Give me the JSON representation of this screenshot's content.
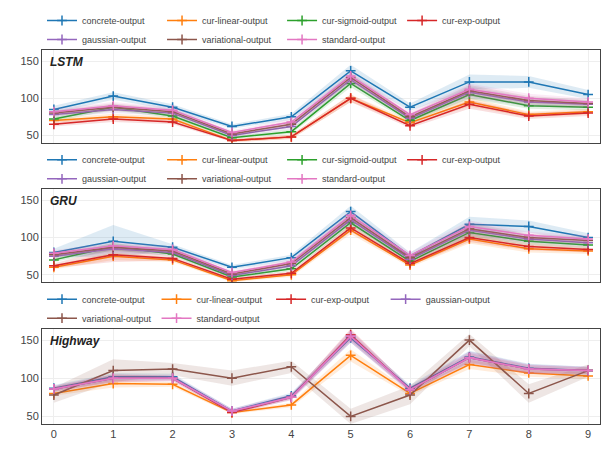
{
  "chart_data": [
    {
      "type": "line",
      "title": "LSTM",
      "legend": "above",
      "grid": true,
      "marker": "cross",
      "tick_labels": "y",
      "x": [
        0,
        1,
        2,
        3,
        4,
        5,
        6,
        7,
        8,
        9
      ],
      "xlim": [
        -0.2,
        9.2
      ],
      "xticks": [
        0,
        1,
        2,
        3,
        4,
        5,
        6,
        7,
        8,
        9
      ],
      "ylim": [
        40,
        165
      ],
      "yticks": [
        50,
        100,
        150
      ],
      "series": [
        {
          "name": "concrete-output",
          "color": "#1f77b4",
          "values": [
            85,
            103,
            88,
            62,
            75,
            137,
            88,
            122,
            122,
            105
          ],
          "std": [
            5,
            5,
            4,
            3,
            4,
            8,
            5,
            10,
            8,
            6
          ]
        },
        {
          "name": "cur-linear-output",
          "color": "#ff7f0e",
          "values": [
            70,
            75,
            72,
            43,
            48,
            100,
            67,
            95,
            78,
            82
          ],
          "std": [
            3,
            4,
            3,
            2,
            3,
            5,
            3,
            6,
            4,
            4
          ]
        },
        {
          "name": "cur-sigmoid-output",
          "color": "#2ca02c",
          "values": [
            72,
            88,
            76,
            47,
            55,
            120,
            70,
            105,
            90,
            88
          ],
          "std": [
            3,
            4,
            3,
            2,
            3,
            5,
            3,
            6,
            4,
            4
          ]
        },
        {
          "name": "cur-exp-output",
          "color": "#d62728",
          "values": [
            65,
            72,
            68,
            43,
            48,
            100,
            63,
            92,
            76,
            80
          ],
          "std": [
            3,
            4,
            3,
            2,
            3,
            5,
            3,
            6,
            4,
            4
          ]
        },
        {
          "name": "gaussian-output",
          "color": "#9467bd",
          "values": [
            78,
            85,
            80,
            50,
            62,
            125,
            73,
            108,
            95,
            92
          ],
          "std": [
            4,
            5,
            4,
            3,
            4,
            6,
            4,
            8,
            6,
            5
          ]
        },
        {
          "name": "variational-output",
          "color": "#8c564b",
          "values": [
            80,
            88,
            82,
            52,
            65,
            128,
            75,
            110,
            97,
            93
          ],
          "std": [
            4,
            5,
            4,
            3,
            4,
            6,
            4,
            8,
            6,
            5
          ]
        },
        {
          "name": "standard-output",
          "color": "#e377c2",
          "values": [
            82,
            90,
            84,
            54,
            68,
            130,
            78,
            112,
            100,
            95
          ],
          "std": [
            4,
            5,
            4,
            3,
            4,
            6,
            4,
            8,
            6,
            5
          ]
        }
      ]
    },
    {
      "type": "line",
      "title": "GRU",
      "legend": "above",
      "grid": true,
      "marker": "cross",
      "tick_labels": "y",
      "x": [
        0,
        1,
        2,
        3,
        4,
        5,
        6,
        7,
        8,
        9
      ],
      "xlim": [
        -0.2,
        9.2
      ],
      "xticks": [
        0,
        1,
        2,
        3,
        4,
        5,
        6,
        7,
        8,
        9
      ],
      "ylim": [
        40,
        165
      ],
      "yticks": [
        50,
        100,
        150
      ],
      "series": [
        {
          "name": "concrete-output",
          "color": "#1f77b4",
          "values": [
            80,
            95,
            87,
            60,
            73,
            135,
            75,
            118,
            115,
            100
          ],
          "std": [
            5,
            22,
            4,
            3,
            4,
            8,
            5,
            10,
            8,
            6
          ]
        },
        {
          "name": "cur-linear-output",
          "color": "#ff7f0e",
          "values": [
            60,
            75,
            70,
            42,
            50,
            110,
            63,
            98,
            85,
            82
          ],
          "std": [
            3,
            5,
            3,
            2,
            3,
            5,
            3,
            6,
            5,
            4
          ]
        },
        {
          "name": "cur-sigmoid-output",
          "color": "#2ca02c",
          "values": [
            70,
            88,
            78,
            47,
            58,
            120,
            68,
            107,
            95,
            90
          ],
          "std": [
            3,
            5,
            3,
            2,
            3,
            5,
            3,
            6,
            5,
            4
          ]
        },
        {
          "name": "cur-exp-output",
          "color": "#d62728",
          "values": [
            62,
            77,
            72,
            44,
            52,
            113,
            65,
            100,
            88,
            84
          ],
          "std": [
            3,
            10,
            3,
            2,
            3,
            5,
            3,
            6,
            5,
            4
          ]
        },
        {
          "name": "gaussian-output",
          "color": "#9467bd",
          "values": [
            75,
            85,
            80,
            49,
            62,
            124,
            71,
            110,
            98,
            93
          ],
          "std": [
            4,
            5,
            4,
            3,
            4,
            6,
            4,
            8,
            5,
            5
          ]
        },
        {
          "name": "variational-output",
          "color": "#8c564b",
          "values": [
            77,
            87,
            82,
            51,
            65,
            127,
            73,
            112,
            100,
            96
          ],
          "std": [
            4,
            5,
            4,
            3,
            4,
            6,
            4,
            8,
            5,
            5
          ]
        },
        {
          "name": "standard-output",
          "color": "#e377c2",
          "values": [
            79,
            89,
            84,
            53,
            67,
            130,
            76,
            115,
            103,
            98
          ],
          "std": [
            4,
            5,
            4,
            3,
            4,
            6,
            4,
            8,
            5,
            5
          ]
        }
      ]
    },
    {
      "type": "line",
      "title": "Highway",
      "legend": "above",
      "grid": true,
      "marker": "cross",
      "x": [
        0,
        1,
        2,
        3,
        4,
        5,
        6,
        7,
        8,
        9
      ],
      "xlim": [
        -0.2,
        9.2
      ],
      "xticks": [
        0,
        1,
        2,
        3,
        4,
        5,
        6,
        7,
        8,
        9
      ],
      "ylim": [
        40,
        165
      ],
      "yticks": [
        50,
        100,
        150
      ],
      "series": [
        {
          "name": "concrete-output",
          "color": "#1f77b4",
          "values": [
            87,
            102,
            102,
            57,
            77,
            153,
            87,
            128,
            113,
            110
          ],
          "std": [
            4,
            5,
            4,
            3,
            4,
            6,
            4,
            8,
            6,
            5
          ]
        },
        {
          "name": "cur-linear-output",
          "color": "#ff7f0e",
          "values": [
            80,
            93,
            92,
            55,
            65,
            130,
            80,
            118,
            107,
            103
          ],
          "std": [
            3,
            5,
            3,
            2,
            3,
            8,
            3,
            6,
            5,
            4
          ]
        },
        {
          "name": "cur-exp-output",
          "color": "#d62728",
          "values": [
            86,
            100,
            100,
            55,
            75,
            157,
            85,
            127,
            112,
            110
          ],
          "std": [
            3,
            5,
            3,
            2,
            3,
            8,
            3,
            6,
            5,
            4
          ]
        },
        {
          "name": "gaussian-output",
          "color": "#9467bd",
          "values": [
            86,
            100,
            100,
            57,
            75,
            155,
            85,
            127,
            112,
            110
          ],
          "std": [
            4,
            5,
            4,
            3,
            4,
            8,
            4,
            8,
            6,
            5
          ]
        },
        {
          "name": "variational-output",
          "color": "#8c564b",
          "values": [
            78,
            110,
            112,
            100,
            115,
            50,
            78,
            150,
            80,
            110
          ],
          "std": [
            10,
            15,
            8,
            10,
            8,
            10,
            12,
            8,
            12,
            8
          ]
        },
        {
          "name": "standard-output",
          "color": "#e377c2",
          "values": [
            86,
            100,
            100,
            57,
            75,
            155,
            85,
            127,
            112,
            110
          ],
          "std": [
            4,
            5,
            4,
            3,
            4,
            8,
            4,
            8,
            6,
            5
          ]
        }
      ]
    }
  ]
}
